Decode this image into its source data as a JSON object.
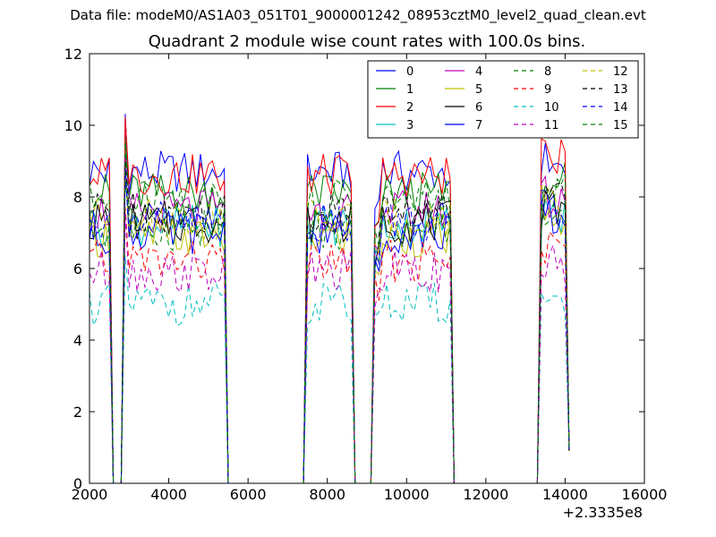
{
  "suptitle": "Data file: modeM0/AS1A03_051T01_9000001242_08953cztM0_level2_quad_clean.evt",
  "chart_data": {
    "type": "line",
    "title": "Quadrant 2 module wise count rates with 100.0s bins.",
    "xlabel": "",
    "ylabel": "",
    "x_offset_label": "+2.3335e8",
    "xlim": [
      2000,
      16000
    ],
    "ylim": [
      0,
      12
    ],
    "xticks": [
      2000,
      4000,
      6000,
      8000,
      10000,
      12000,
      14000,
      16000
    ],
    "yticks": [
      0,
      2,
      4,
      6,
      8,
      10,
      12
    ],
    "legend_position": "top-right",
    "legend_columns": 4,
    "series": [
      {
        "name": "0",
        "color": "#0000ff",
        "dash": "solid",
        "level": 8.7
      },
      {
        "name": "1",
        "color": "#008000",
        "dash": "solid",
        "level": 8.1
      },
      {
        "name": "2",
        "color": "#ff0000",
        "dash": "solid",
        "level": 8.6
      },
      {
        "name": "3",
        "color": "#00bfbf",
        "dash": "solid",
        "level": 7.2
      },
      {
        "name": "4",
        "color": "#bf00bf",
        "dash": "solid",
        "level": 7.6
      },
      {
        "name": "5",
        "color": "#bfbf00",
        "dash": "solid",
        "level": 6.9
      },
      {
        "name": "6",
        "color": "#000000",
        "dash": "solid",
        "level": 7.3
      },
      {
        "name": "7",
        "color": "#0000ff",
        "dash": "solid",
        "level": 7.0
      },
      {
        "name": "8",
        "color": "#008000",
        "dash": "dashed",
        "level": 7.1
      },
      {
        "name": "9",
        "color": "#ff0000",
        "dash": "dashed",
        "level": 6.2
      },
      {
        "name": "10",
        "color": "#00bfbf",
        "dash": "dashed",
        "level": 5.0
      },
      {
        "name": "11",
        "color": "#bf00bf",
        "dash": "dashed",
        "level": 5.9
      },
      {
        "name": "12",
        "color": "#bfbf00",
        "dash": "dashed",
        "level": 7.4
      },
      {
        "name": "13",
        "color": "#000000",
        "dash": "dashed",
        "level": 7.6
      },
      {
        "name": "14",
        "color": "#0000ff",
        "dash": "dashed",
        "level": 7.3
      },
      {
        "name": "15",
        "color": "#008000",
        "dash": "dashed",
        "level": 7.9
      }
    ],
    "segments": [
      [
        2000,
        2500
      ],
      [
        2850,
        5400
      ],
      [
        7450,
        8600
      ],
      [
        9150,
        11150
      ],
      [
        13350,
        14100
      ]
    ],
    "spikes": [
      2900,
      9150
    ]
  }
}
